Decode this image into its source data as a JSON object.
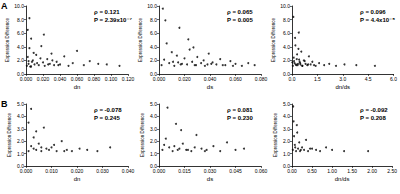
{
  "chart_data": [
    {
      "type": "scatter",
      "title": "A",
      "x_label": "dn",
      "y_label": "Expression Difference",
      "color": "#000000",
      "marker": "circle",
      "annotations": [
        "ρ = 0.121",
        "P = 2.39x10⁻⁷"
      ],
      "xlim": [
        0,
        0.12
      ],
      "ylim": [
        0,
        10
      ],
      "xticks": [
        {
          "value": 0,
          "label": "0.000"
        },
        {
          "value": 0.02,
          "label": "0.020"
        },
        {
          "value": 0.04,
          "label": "0.040"
        },
        {
          "value": 0.06,
          "label": "0.060"
        },
        {
          "value": 0.08,
          "label": "0.080"
        },
        {
          "value": 0.1,
          "label": "0.100"
        },
        {
          "value": 0.12,
          "label": "0.120"
        }
      ],
      "yticks": [
        {
          "value": 0,
          "label": "0.0"
        },
        {
          "value": 2,
          "label": "2.0"
        },
        {
          "value": 4,
          "label": "4.0"
        },
        {
          "value": 6,
          "label": "6.0"
        },
        {
          "value": 8,
          "label": "8.0"
        },
        {
          "value": 10,
          "label": "10.0"
        }
      ],
      "x": [
        0.001,
        0.002,
        0.003,
        0.004,
        0.005,
        0.006,
        0.008,
        0.01,
        0.012,
        0.015,
        0.018,
        0.02,
        0.022,
        0.025,
        0.028,
        0.03,
        0.033,
        0.036,
        0.04,
        0.045,
        0.05,
        0.055,
        0.06,
        0.068,
        0.075,
        0.085,
        0.095,
        0.11,
        0.002,
        0.004,
        0.007,
        0.009,
        0.013,
        0.017,
        0.021,
        0.026,
        0.031,
        0.038,
        0.003,
        0.006
      ],
      "values": [
        1.2,
        2.5,
        1.5,
        3.8,
        1.1,
        5.2,
        2.0,
        1.4,
        2.8,
        1.3,
        4.1,
        1.7,
        1.2,
        2.2,
        1.5,
        3.0,
        1.3,
        1.8,
        1.4,
        2.6,
        1.2,
        1.6,
        3.4,
        1.3,
        1.9,
        1.5,
        1.4,
        1.2,
        6.5,
        8.2,
        1.8,
        3.1,
        1.6,
        2.3,
        5.8,
        1.4,
        2.0,
        1.3,
        1.9,
        1.1
      ]
    },
    {
      "type": "scatter",
      "x_label": "ds",
      "y_label": "Expression Difference",
      "color": "#000000",
      "marker": "circle",
      "annotations": [
        "ρ = 0.065",
        "P = 0.005"
      ],
      "xlim": [
        0,
        0.08
      ],
      "ylim": [
        0,
        10
      ],
      "xticks": [
        {
          "value": 0,
          "label": "0.000"
        },
        {
          "value": 0.02,
          "label": "0.020"
        },
        {
          "value": 0.04,
          "label": "0.040"
        },
        {
          "value": 0.06,
          "label": "0.060"
        },
        {
          "value": 0.08,
          "label": "0.080"
        }
      ],
      "yticks": [
        {
          "value": 0,
          "label": "0.0"
        },
        {
          "value": 2,
          "label": "2.0"
        },
        {
          "value": 4,
          "label": "4.0"
        },
        {
          "value": 6,
          "label": "6.0"
        },
        {
          "value": 8,
          "label": "8.0"
        },
        {
          "value": 10,
          "label": "10.0"
        }
      ],
      "x": [
        0.002,
        0.004,
        0.006,
        0.008,
        0.01,
        0.012,
        0.014,
        0.016,
        0.018,
        0.02,
        0.022,
        0.024,
        0.026,
        0.028,
        0.03,
        0.033,
        0.036,
        0.039,
        0.042,
        0.045,
        0.048,
        0.052,
        0.056,
        0.06,
        0.065,
        0.07,
        0.075,
        0.005,
        0.011,
        0.017,
        0.023,
        0.029,
        0.035,
        0.041,
        0.05,
        0.058,
        0.003,
        0.015,
        0.027,
        0.038
      ],
      "values": [
        1.3,
        2.1,
        4.5,
        1.6,
        3.2,
        1.2,
        2.7,
        6.8,
        1.5,
        2.3,
        1.4,
        3.6,
        1.8,
        1.3,
        2.5,
        1.6,
        1.2,
        3.0,
        1.7,
        1.4,
        2.2,
        1.3,
        1.9,
        1.5,
        1.2,
        1.6,
        1.3,
        7.9,
        1.8,
        1.4,
        5.1,
        1.3,
        2.0,
        1.5,
        1.3,
        1.2,
        9.6,
        1.7,
        3.9,
        1.4
      ]
    },
    {
      "type": "scatter",
      "x_label": "dn/ds",
      "y_label": "Expression Difference",
      "color": "#000000",
      "marker": "circle",
      "annotations": [
        "ρ = 0.096",
        "P = 4.4x10⁻⁵"
      ],
      "xlim": [
        0,
        6
      ],
      "ylim": [
        0,
        10
      ],
      "xticks": [
        {
          "value": 0,
          "label": "0.0"
        },
        1.5,
        {
          "value": 3,
          "label": "3.0"
        },
        4.5,
        {
          "value": 6,
          "label": "6.0"
        }
      ],
      "yticks": [
        {
          "value": 0,
          "label": "0.0"
        },
        {
          "value": 2,
          "label": "2.0"
        },
        {
          "value": 4,
          "label": "4.0"
        },
        {
          "value": 6,
          "label": "6.0"
        },
        {
          "value": 8,
          "label": "8.0"
        },
        {
          "value": 10,
          "label": "10.0"
        }
      ],
      "x": [
        0.05,
        0.1,
        0.15,
        0.2,
        0.25,
        0.3,
        0.35,
        0.4,
        0.45,
        0.5,
        0.55,
        0.6,
        0.7,
        0.8,
        0.9,
        1.0,
        1.1,
        1.2,
        1.4,
        1.6,
        1.9,
        2.2,
        2.6,
        3.1,
        3.8,
        4.9,
        0.08,
        0.12,
        0.18,
        0.22,
        0.28,
        0.33,
        0.38,
        0.48,
        0.62,
        0.75,
        0.95,
        1.3,
        0.02,
        0.42
      ],
      "values": [
        1.2,
        2.4,
        1.6,
        4.2,
        1.3,
        2.9,
        1.5,
        6.1,
        1.8,
        1.4,
        3.3,
        1.2,
        2.0,
        1.5,
        1.3,
        2.6,
        1.4,
        1.8,
        1.2,
        1.6,
        1.3,
        1.5,
        1.2,
        1.4,
        1.3,
        1.2,
        8.4,
        1.9,
        5.3,
        1.4,
        2.2,
        1.3,
        3.7,
        1.6,
        1.2,
        1.9,
        1.4,
        1.3,
        1.7,
        2.1
      ]
    },
    {
      "type": "scatter",
      "title": "B",
      "x_label": "dn",
      "y_label": "Expression Difference",
      "color": "#000000",
      "marker": "circle",
      "annotations": [
        "ρ = -0.078",
        "P = 0.245"
      ],
      "xlim": [
        0,
        0.04
      ],
      "ylim": [
        0,
        5
      ],
      "xticks": [
        {
          "value": 0,
          "label": "0.000"
        },
        {
          "value": 0.01,
          "label": "0.010"
        },
        {
          "value": 0.02,
          "label": "0.020"
        },
        {
          "value": 0.03,
          "label": "0.030"
        },
        {
          "value": 0.04,
          "label": "0.040"
        }
      ],
      "yticks": [
        {
          "value": 0,
          "label": "0.0"
        },
        {
          "value": 1,
          "label": "1.0"
        },
        {
          "value": 2,
          "label": "2.0"
        },
        {
          "value": 3,
          "label": "3.0"
        },
        {
          "value": 4,
          "label": "4.0"
        },
        {
          "value": 5,
          "label": "5.0"
        }
      ],
      "x": [
        0.001,
        0.002,
        0.003,
        0.004,
        0.005,
        0.006,
        0.007,
        0.008,
        0.01,
        0.012,
        0.014,
        0.016,
        0.018,
        0.021,
        0.024,
        0.028,
        0.033,
        0.002,
        0.004,
        0.006,
        0.009,
        0.011,
        0.015,
        0.001,
        0.003
      ],
      "values": [
        1.2,
        1.6,
        2.3,
        1.3,
        1.8,
        1.2,
        3.1,
        1.4,
        1.5,
        1.2,
        2.0,
        1.3,
        1.2,
        1.4,
        1.3,
        1.2,
        1.5,
        4.6,
        2.8,
        1.5,
        1.3,
        1.7,
        1.2,
        3.5,
        1.4
      ]
    },
    {
      "type": "scatter",
      "x_label": "ds",
      "y_label": "Expression Difference",
      "color": "#000000",
      "marker": "circle",
      "annotations": [
        "ρ = 0.081",
        "P = 0.230"
      ],
      "xlim": [
        0,
        0.06
      ],
      "ylim": [
        0,
        5
      ],
      "xticks": [
        {
          "value": 0,
          "label": "0.000"
        },
        0.015,
        {
          "value": 0.03,
          "label": "0.030"
        },
        0.045,
        {
          "value": 0.06,
          "label": "0.060"
        }
      ],
      "yticks": [
        {
          "value": 0,
          "label": "0.0"
        },
        {
          "value": 1,
          "label": "1.0"
        },
        {
          "value": 2,
          "label": "2.0"
        },
        {
          "value": 3,
          "label": "3.0"
        },
        {
          "value": 4,
          "label": "4.0"
        },
        {
          "value": 5,
          "label": "5.0"
        }
      ],
      "x": [
        0.002,
        0.004,
        0.006,
        0.008,
        0.01,
        0.012,
        0.014,
        0.016,
        0.019,
        0.022,
        0.025,
        0.028,
        0.032,
        0.036,
        0.04,
        0.045,
        0.05,
        0.005,
        0.009,
        0.013,
        0.017,
        0.021,
        0.027,
        0.003,
        0.011
      ],
      "values": [
        1.3,
        2.2,
        1.5,
        1.2,
        3.4,
        1.4,
        1.8,
        1.3,
        1.2,
        2.5,
        1.4,
        1.3,
        1.6,
        1.2,
        1.9,
        1.3,
        1.4,
        4.7,
        1.6,
        2.9,
        1.3,
        1.5,
        1.2,
        1.7,
        1.3
      ]
    },
    {
      "type": "scatter",
      "x_label": "dn/ds",
      "y_label": "Expression Difference",
      "color": "#000000",
      "marker": "circle",
      "annotations": [
        "ρ = -0.092",
        "P = 0.208"
      ],
      "xlim": [
        0,
        2.5
      ],
      "ylim": [
        0,
        5
      ],
      "xticks": [
        {
          "value": 0,
          "label": "0.00"
        },
        {
          "value": 0.5,
          "label": "0.50"
        },
        {
          "value": 1,
          "label": "1.00"
        },
        {
          "value": 1.5,
          "label": "1.50"
        },
        {
          "value": 2,
          "label": "2.00"
        },
        {
          "value": 2.5,
          "label": "2.50"
        }
      ],
      "yticks": [
        {
          "value": 0,
          "label": "0.0"
        },
        {
          "value": 1,
          "label": "1.0"
        },
        {
          "value": 2,
          "label": "2.0"
        },
        {
          "value": 3,
          "label": "3.0"
        },
        {
          "value": 4,
          "label": "4.0"
        },
        {
          "value": 5,
          "label": "5.0"
        }
      ],
      "x": [
        0.02,
        0.05,
        0.08,
        0.1,
        0.12,
        0.15,
        0.18,
        0.2,
        0.25,
        0.3,
        0.35,
        0.4,
        0.5,
        0.6,
        0.7,
        0.85,
        1.0,
        1.3,
        0.03,
        0.07,
        0.13,
        0.22,
        0.45,
        0.04,
        1.9
      ],
      "values": [
        1.3,
        2.4,
        1.5,
        1.2,
        3.3,
        1.4,
        1.9,
        1.2,
        1.5,
        1.3,
        2.1,
        1.2,
        1.4,
        1.3,
        1.2,
        1.5,
        1.3,
        1.2,
        4.8,
        1.7,
        2.7,
        1.3,
        1.4,
        3.6,
        1.2
      ]
    }
  ]
}
